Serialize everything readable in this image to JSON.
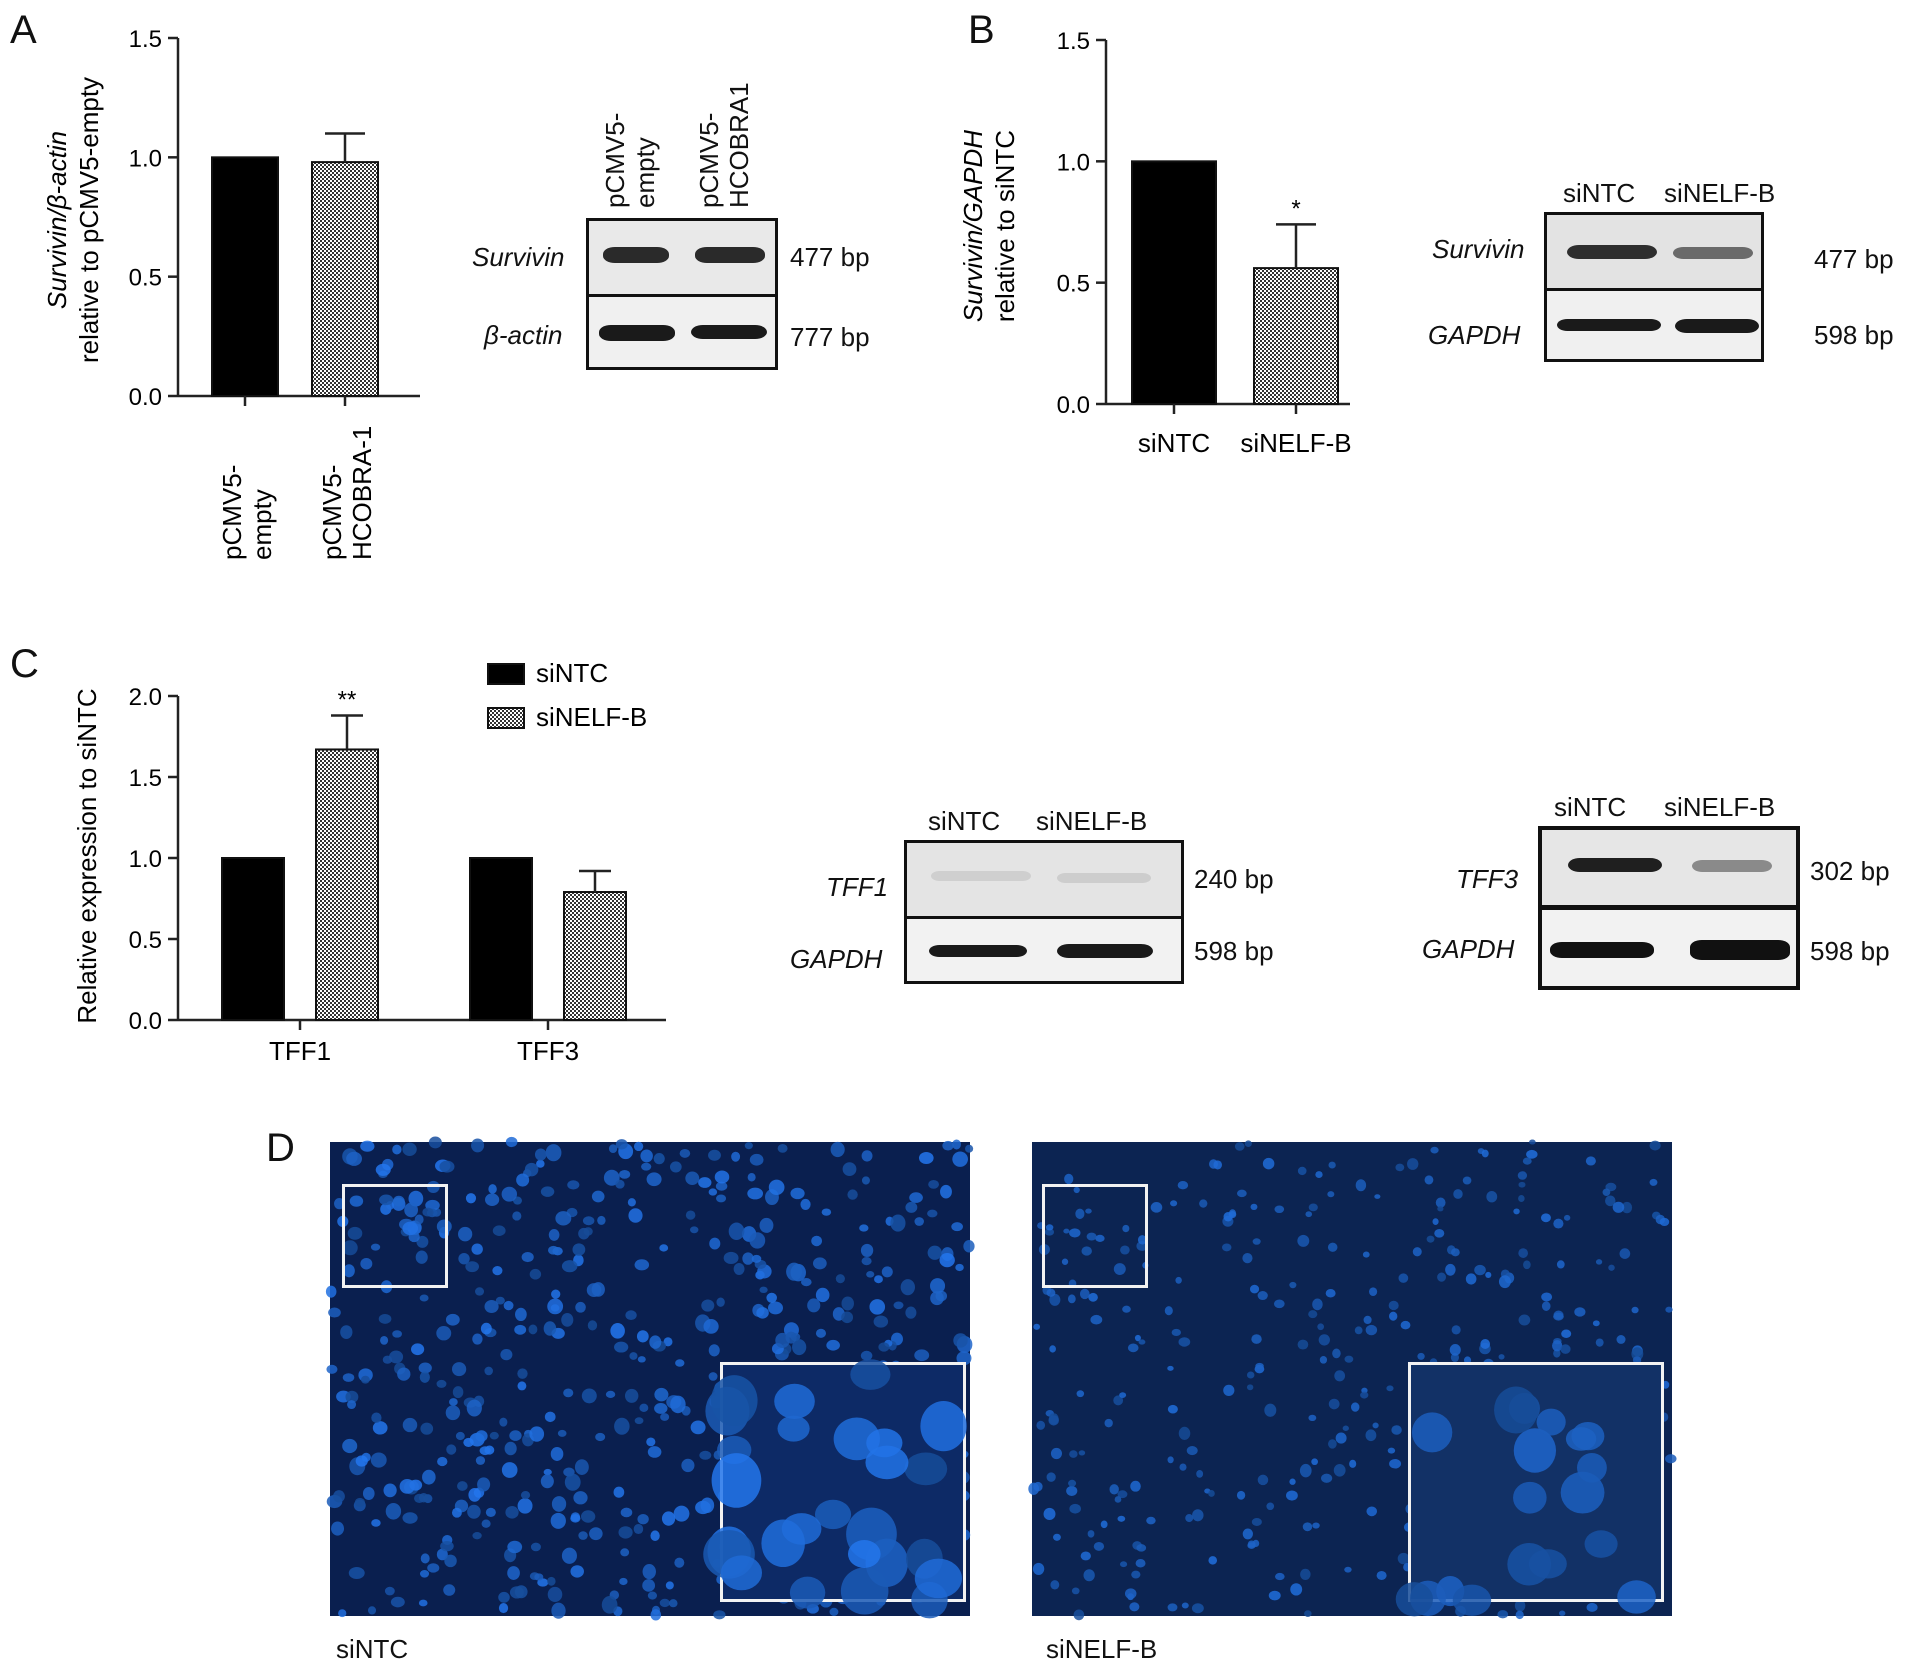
{
  "panels": {
    "A": {
      "letter": "A",
      "chart": {
        "type": "bar",
        "ylabel_italic": "Survivin/β-actin",
        "ylabel_plain": "relative to pCMV5-empty",
        "ylim": [
          0,
          1.5
        ],
        "yticks": [
          "0.0",
          "0.5",
          "1.0",
          "1.5"
        ],
        "categories": [
          "pCMV5-\nempty",
          "pCMV5-\nHCOBRA-1"
        ],
        "values": [
          1.0,
          0.98
        ],
        "errors": [
          0,
          0.12
        ],
        "colors": [
          "#000000",
          "pattern"
        ]
      },
      "gel": {
        "lanes": [
          "pCMV5-\nempty",
          "pCMV5-\nHCOBRA1"
        ],
        "rows": [
          {
            "label": "Survivin",
            "size": "477 bp"
          },
          {
            "label": "β-actin",
            "size": "777 bp"
          }
        ]
      }
    },
    "B": {
      "letter": "B",
      "chart": {
        "type": "bar",
        "ylabel_italic": "Survivin/GAPDH",
        "ylabel_plain": "relative to siNTC",
        "ylim": [
          0,
          1.5
        ],
        "yticks": [
          "0.0",
          "0.5",
          "1.0",
          "1.5"
        ],
        "categories": [
          "siNTC",
          "siNELF-B"
        ],
        "values": [
          1.0,
          0.56
        ],
        "errors": [
          0,
          0.18
        ],
        "annotations": [
          "",
          "*"
        ]
      },
      "gel": {
        "lanes": [
          "siNTC",
          "siNELF-B"
        ],
        "rows": [
          {
            "label": "Survivin",
            "size": "477 bp"
          },
          {
            "label": "GAPDH",
            "size": "598 bp"
          }
        ]
      }
    },
    "C": {
      "letter": "C",
      "chart": {
        "type": "bar",
        "ylabel": "Relative expression to siNTC",
        "ylim": [
          0,
          2.0
        ],
        "yticks": [
          "0.0",
          "0.5",
          "1.0",
          "1.5",
          "2.0"
        ],
        "categories": [
          "TFF1",
          "TFF3"
        ],
        "series": [
          {
            "name": "siNTC",
            "values": [
              1.0,
              1.0
            ],
            "errors": [
              0,
              0
            ]
          },
          {
            "name": "siNELF-B",
            "values": [
              1.67,
              0.79
            ],
            "errors": [
              0.21,
              0.13
            ]
          }
        ],
        "annotations": [
          "**",
          ""
        ],
        "legend_position": "top-right"
      },
      "gel1": {
        "lanes": [
          "siNTC",
          "siNELF-B"
        ],
        "rows": [
          {
            "label": "TFF1",
            "size": "240 bp"
          },
          {
            "label": "GAPDH",
            "size": "598 bp"
          }
        ]
      },
      "gel2": {
        "lanes": [
          "siNTC",
          "siNELF-B"
        ],
        "rows": [
          {
            "label": "TFF3",
            "size": "302 bp"
          },
          {
            "label": "GAPDH",
            "size": "598 bp"
          }
        ]
      }
    },
    "D": {
      "letter": "D",
      "images": [
        {
          "caption": "siNTC"
        },
        {
          "caption": "siNELF-B"
        }
      ]
    }
  },
  "chart_data": [
    {
      "type": "bar",
      "ylabel": "Survivin/β-actin relative to pCMV5-empty",
      "categories": [
        "pCMV5-empty",
        "pCMV5-HCOBRA-1"
      ],
      "values": [
        1.0,
        0.98
      ],
      "errors": [
        0,
        0.12
      ],
      "ylim": [
        0,
        1.5
      ]
    },
    {
      "type": "bar",
      "ylabel": "Survivin/GAPDH relative to siNTC",
      "categories": [
        "siNTC",
        "siNELF-B"
      ],
      "values": [
        1.0,
        0.56
      ],
      "errors": [
        0,
        0.18
      ],
      "ylim": [
        0,
        1.5
      ]
    },
    {
      "type": "bar",
      "ylabel": "Relative expression to siNTC",
      "categories": [
        "TFF1",
        "TFF3"
      ],
      "series": [
        {
          "name": "siNTC",
          "values": [
            1.0,
            1.0
          ]
        },
        {
          "name": "siNELF-B",
          "values": [
            1.67,
            0.79
          ]
        }
      ],
      "ylim": [
        0,
        2.0
      ]
    }
  ]
}
